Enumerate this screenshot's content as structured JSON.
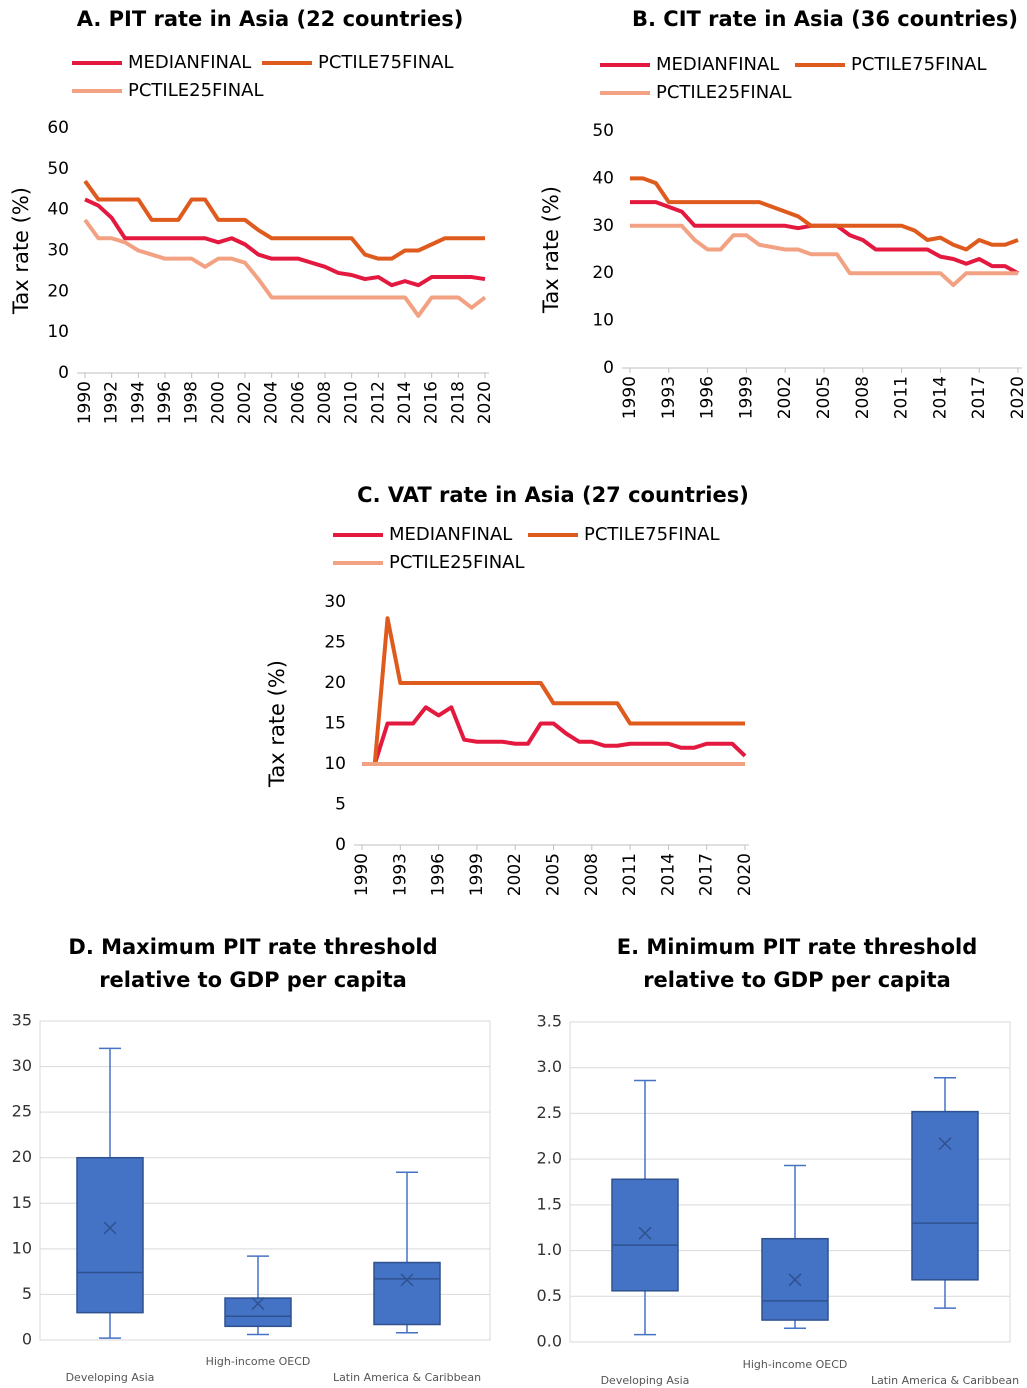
{
  "chart_data": [
    {
      "type": "line",
      "title": "A. PIT rate in Asia (22 countries)",
      "y_label": "Tax rate (%)",
      "x": [
        1990,
        1991,
        1992,
        1993,
        1994,
        1995,
        1996,
        1997,
        1998,
        1999,
        2000,
        2001,
        2002,
        2003,
        2004,
        2005,
        2006,
        2007,
        2008,
        2009,
        2010,
        2011,
        2012,
        2013,
        2014,
        2015,
        2016,
        2017,
        2018,
        2019,
        2020
      ],
      "xticks": [
        1990,
        1992,
        1994,
        1996,
        1998,
        2000,
        2002,
        2004,
        2006,
        2008,
        2010,
        2012,
        2014,
        2016,
        2018,
        2020
      ],
      "ylim": [
        0,
        60
      ],
      "yticks": [
        0,
        10,
        20,
        30,
        40,
        50,
        60
      ],
      "series": [
        {
          "name": "MEDIANFINAL",
          "color": "#e3193f",
          "values": [
            42.5,
            41,
            38,
            33,
            33,
            33,
            33,
            33,
            33,
            33,
            32,
            33,
            31.5,
            29,
            28,
            28,
            28,
            27,
            26,
            24.5,
            24,
            23,
            23.5,
            21.5,
            22.5,
            21.5,
            23.5,
            23.5,
            23.5,
            23.5,
            23
          ]
        },
        {
          "name": "PCTILE75FINAL",
          "color": "#df5a1d",
          "values": [
            47,
            42.5,
            42.5,
            42.5,
            42.5,
            37.5,
            37.5,
            37.5,
            42.5,
            42.5,
            37.5,
            37.5,
            37.5,
            35,
            33,
            33,
            33,
            33,
            33,
            33,
            33,
            29,
            28,
            28,
            30,
            30,
            31.5,
            33,
            33,
            33,
            33
          ]
        },
        {
          "name": "PCTILE25FINAL",
          "color": "#f2a283",
          "values": [
            37.5,
            33,
            33,
            32,
            30,
            29,
            28,
            28,
            28,
            26,
            28,
            28,
            27,
            23,
            18.5,
            18.5,
            18.5,
            18.5,
            18.5,
            18.5,
            18.5,
            18.5,
            18.5,
            18.5,
            18.5,
            14,
            18.5,
            18.5,
            18.5,
            16,
            18.5
          ]
        }
      ]
    },
    {
      "type": "line",
      "title": "B. CIT rate in Asia (36 countries)",
      "y_label": "Tax rate (%)",
      "x": [
        1990,
        1991,
        1992,
        1993,
        1994,
        1995,
        1996,
        1997,
        1998,
        1999,
        2000,
        2001,
        2002,
        2003,
        2004,
        2005,
        2006,
        2007,
        2008,
        2009,
        2010,
        2011,
        2012,
        2013,
        2014,
        2015,
        2016,
        2017,
        2018,
        2019,
        2020
      ],
      "xticks": [
        1990,
        1993,
        1996,
        1999,
        2002,
        2005,
        2008,
        2011,
        2014,
        2017,
        2020
      ],
      "ylim": [
        0,
        50
      ],
      "yticks": [
        0,
        10,
        20,
        30,
        40,
        50
      ],
      "series": [
        {
          "name": "MEDIANFINAL",
          "color": "#e3193f",
          "values": [
            35,
            35,
            35,
            34,
            33,
            30,
            30,
            30,
            30,
            30,
            30,
            30,
            30,
            29.5,
            30,
            30,
            30,
            28,
            27,
            25,
            25,
            25,
            25,
            25,
            23.5,
            23,
            22,
            23,
            21.5,
            21.5,
            20
          ]
        },
        {
          "name": "PCTILE75FINAL",
          "color": "#df5a1d",
          "values": [
            40,
            40,
            39,
            35,
            35,
            35,
            35,
            35,
            35,
            35,
            35,
            34,
            33,
            32,
            30,
            30,
            30,
            30,
            30,
            30,
            30,
            30,
            29,
            27,
            27.5,
            26,
            25,
            27,
            26,
            26,
            27
          ]
        },
        {
          "name": "PCTILE25FINAL",
          "color": "#f2a283",
          "values": [
            30,
            30,
            30,
            30,
            30,
            27,
            25,
            25,
            28,
            28,
            26,
            25.5,
            25,
            25,
            24,
            24,
            24,
            20,
            20,
            20,
            20,
            20,
            20,
            20,
            20,
            17.5,
            20,
            20,
            20,
            20,
            20
          ]
        }
      ]
    },
    {
      "type": "line",
      "title": "C. VAT rate in Asia (27 countries)",
      "y_label": "Tax rate (%)",
      "x": [
        1990,
        1991,
        1992,
        1993,
        1994,
        1995,
        1996,
        1997,
        1998,
        1999,
        2000,
        2001,
        2002,
        2003,
        2004,
        2005,
        2006,
        2007,
        2008,
        2009,
        2010,
        2011,
        2012,
        2013,
        2014,
        2015,
        2016,
        2017,
        2018,
        2019,
        2020
      ],
      "xticks": [
        1990,
        1993,
        1996,
        1999,
        2002,
        2005,
        2008,
        2011,
        2014,
        2017,
        2020
      ],
      "ylim": [
        0,
        30
      ],
      "yticks": [
        0,
        5,
        10,
        15,
        20,
        25,
        30
      ],
      "series": [
        {
          "name": "MEDIANFINAL",
          "color": "#e3193f",
          "values": [
            10,
            10,
            15,
            15,
            15,
            17,
            16,
            17,
            13,
            12.75,
            12.75,
            12.75,
            12.5,
            12.5,
            15,
            15,
            13.75,
            12.75,
            12.75,
            12.25,
            12.25,
            12.5,
            12.5,
            12.5,
            12.5,
            12,
            12,
            12.5,
            12.5,
            12.5,
            11
          ]
        },
        {
          "name": "PCTILE75FINAL",
          "color": "#df5a1d",
          "values": [
            10,
            10,
            28,
            20,
            20,
            20,
            20,
            20,
            20,
            20,
            20,
            20,
            20,
            20,
            20,
            17.5,
            17.5,
            17.5,
            17.5,
            17.5,
            17.5,
            15,
            15,
            15,
            15,
            15,
            15,
            15,
            15,
            15,
            15
          ]
        },
        {
          "name": "PCTILE25FINAL",
          "color": "#f2a283",
          "values": [
            10,
            10,
            10,
            10,
            10,
            10,
            10,
            10,
            10,
            10,
            10,
            10,
            10,
            10,
            10,
            10,
            10,
            10,
            10,
            10,
            10,
            10,
            10,
            10,
            10,
            10,
            10,
            10,
            10,
            10,
            10
          ]
        }
      ]
    },
    {
      "type": "box",
      "title": [
        "D. Maximum PIT rate threshold",
        "relative to GDP per capita"
      ],
      "categories": [
        "Developing Asia",
        "High-income OECD",
        "Latin America & Caribbean"
      ],
      "color": "#4472c4",
      "grid": true,
      "ylim": [
        0,
        35
      ],
      "yticks": [
        0,
        5,
        10,
        15,
        20,
        25,
        30,
        35
      ],
      "min": [
        0.2,
        0.6,
        0.8
      ],
      "q1": [
        3,
        1.5,
        1.7
      ],
      "median": [
        7.4,
        2.6,
        6.7
      ],
      "q3": [
        20,
        4.6,
        8.5
      ],
      "max": [
        32,
        9.2,
        18.4
      ],
      "mean": [
        12.3,
        4,
        6.6
      ]
    },
    {
      "type": "box",
      "title": [
        "E. Minimum PIT rate threshold",
        "relative to GDP per capita"
      ],
      "categories": [
        "Developing Asia",
        "High-income OECD",
        "Latin America & Caribbean"
      ],
      "color": "#4472c4",
      "grid": true,
      "ylim": [
        0,
        3.5
      ],
      "yticks": [
        {
          "value": 0,
          "label": "0.0"
        },
        0.5,
        {
          "value": 1,
          "label": "1.0"
        },
        1.5,
        {
          "value": 2,
          "label": "2.0"
        },
        2.5,
        {
          "value": 3,
          "label": "3.0"
        },
        3.5
      ],
      "min": [
        0.08,
        0.15,
        0.37
      ],
      "q1": [
        0.56,
        0.24,
        0.68
      ],
      "median": [
        1.06,
        0.45,
        1.3
      ],
      "q3": [
        1.78,
        1.13,
        2.52
      ],
      "max": [
        2.86,
        1.93,
        2.89
      ],
      "mean": [
        1.19,
        0.68,
        2.17
      ]
    }
  ]
}
